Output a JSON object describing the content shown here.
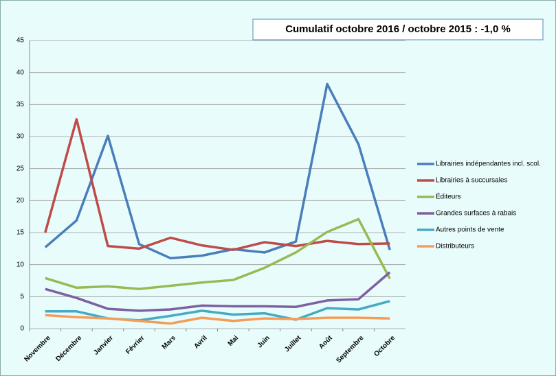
{
  "chart_data": {
    "type": "line",
    "title": "Cumulatif octobre 2016 / octobre 2015 : -1,0 %",
    "categories": [
      "Novembre",
      "Décembre",
      "Janvier",
      "Février",
      "Mars",
      "Avril",
      "Mai",
      "Juin",
      "Juillet",
      "Août",
      "Septembre",
      "Octobre"
    ],
    "series": [
      {
        "name": "Librairies indépendantes incl. scol.",
        "color": "#4a7ebb",
        "values": [
          12.7,
          16.9,
          30.1,
          13.2,
          11.0,
          11.4,
          12.4,
          11.9,
          13.6,
          38.2,
          28.8,
          12.3
        ]
      },
      {
        "name": "Librairies à succursales",
        "color": "#be4b48",
        "values": [
          15.0,
          32.7,
          12.9,
          12.5,
          14.2,
          13.0,
          12.3,
          13.5,
          12.9,
          13.7,
          13.2,
          13.3
        ]
      },
      {
        "name": "Éditeurs",
        "color": "#98b954",
        "values": [
          7.9,
          6.4,
          6.6,
          6.2,
          6.7,
          7.2,
          7.6,
          9.5,
          11.9,
          15.1,
          17.1,
          7.8
        ]
      },
      {
        "name": "Grandes surfaces à rabais",
        "color": "#7d60a0",
        "values": [
          6.2,
          4.8,
          3.1,
          2.8,
          3.0,
          3.6,
          3.5,
          3.5,
          3.4,
          4.4,
          4.6,
          8.8
        ]
      },
      {
        "name": "Autres points de vente",
        "color": "#46aac5",
        "values": [
          2.7,
          2.7,
          1.6,
          1.3,
          2.0,
          2.8,
          2.2,
          2.4,
          1.4,
          3.2,
          3.0,
          4.3
        ]
      },
      {
        "name": "Distributeurs",
        "color": "#f59d56",
        "values": [
          2.1,
          1.8,
          1.6,
          1.2,
          0.8,
          1.7,
          1.2,
          1.6,
          1.5,
          1.7,
          1.7,
          1.6
        ]
      }
    ],
    "ylim": [
      0,
      45
    ],
    "yticks": [
      0,
      5,
      10,
      15,
      20,
      25,
      30,
      35,
      40,
      45
    ],
    "grid": true,
    "legend": "right"
  }
}
